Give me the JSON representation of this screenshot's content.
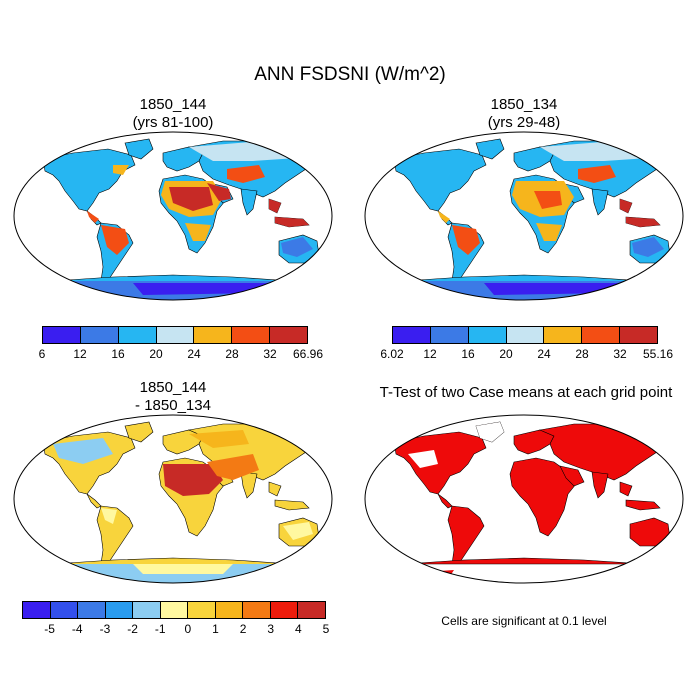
{
  "main_title": "ANN FSDSNI (W/m^2)",
  "panels": {
    "top_left": {
      "title_line1": "1850_144",
      "title_line2": "(yrs 81-100)"
    },
    "top_right": {
      "title_line1": "1850_134",
      "title_line2": "(yrs 29-48)"
    },
    "bottom_left": {
      "title_line1": "1850_144",
      "title_line2": "- 1850_134"
    },
    "bottom_right": {
      "title_line1": "T-Test of two Case means at each grid point"
    }
  },
  "colorbars": {
    "top_left": {
      "labels": [
        "6",
        "12",
        "16",
        "20",
        "24",
        "28",
        "32",
        "66.96"
      ],
      "colors": [
        "#3a1ef0",
        "#3c7ae6",
        "#26b6f2",
        "#c6e4f2",
        "#f6b51c",
        "#f34e14",
        "#c72a26"
      ]
    },
    "top_right": {
      "labels": [
        "6.02",
        "12",
        "16",
        "20",
        "24",
        "28",
        "32",
        "55.16"
      ],
      "colors": [
        "#3a1ef0",
        "#3c7ae6",
        "#26b6f2",
        "#c6e4f2",
        "#f6b51c",
        "#f34e14",
        "#c72a26"
      ]
    },
    "bottom_left": {
      "labels": [
        "-5",
        "-4",
        "-3",
        "-2",
        "-1",
        "0",
        "1",
        "2",
        "3",
        "4",
        "5"
      ],
      "colors": [
        "#3a1ef0",
        "#3350ec",
        "#3c7ae6",
        "#2a9cef",
        "#8ccdf2",
        "#fff8a0",
        "#f8d43c",
        "#f6b51c",
        "#f37a14",
        "#ee1c0c",
        "#c72a26"
      ]
    }
  },
  "significance_note": "Cells are significant at 0.1 level",
  "colors": {
    "significance": "#ee0a0a",
    "outline": "#000000"
  }
}
